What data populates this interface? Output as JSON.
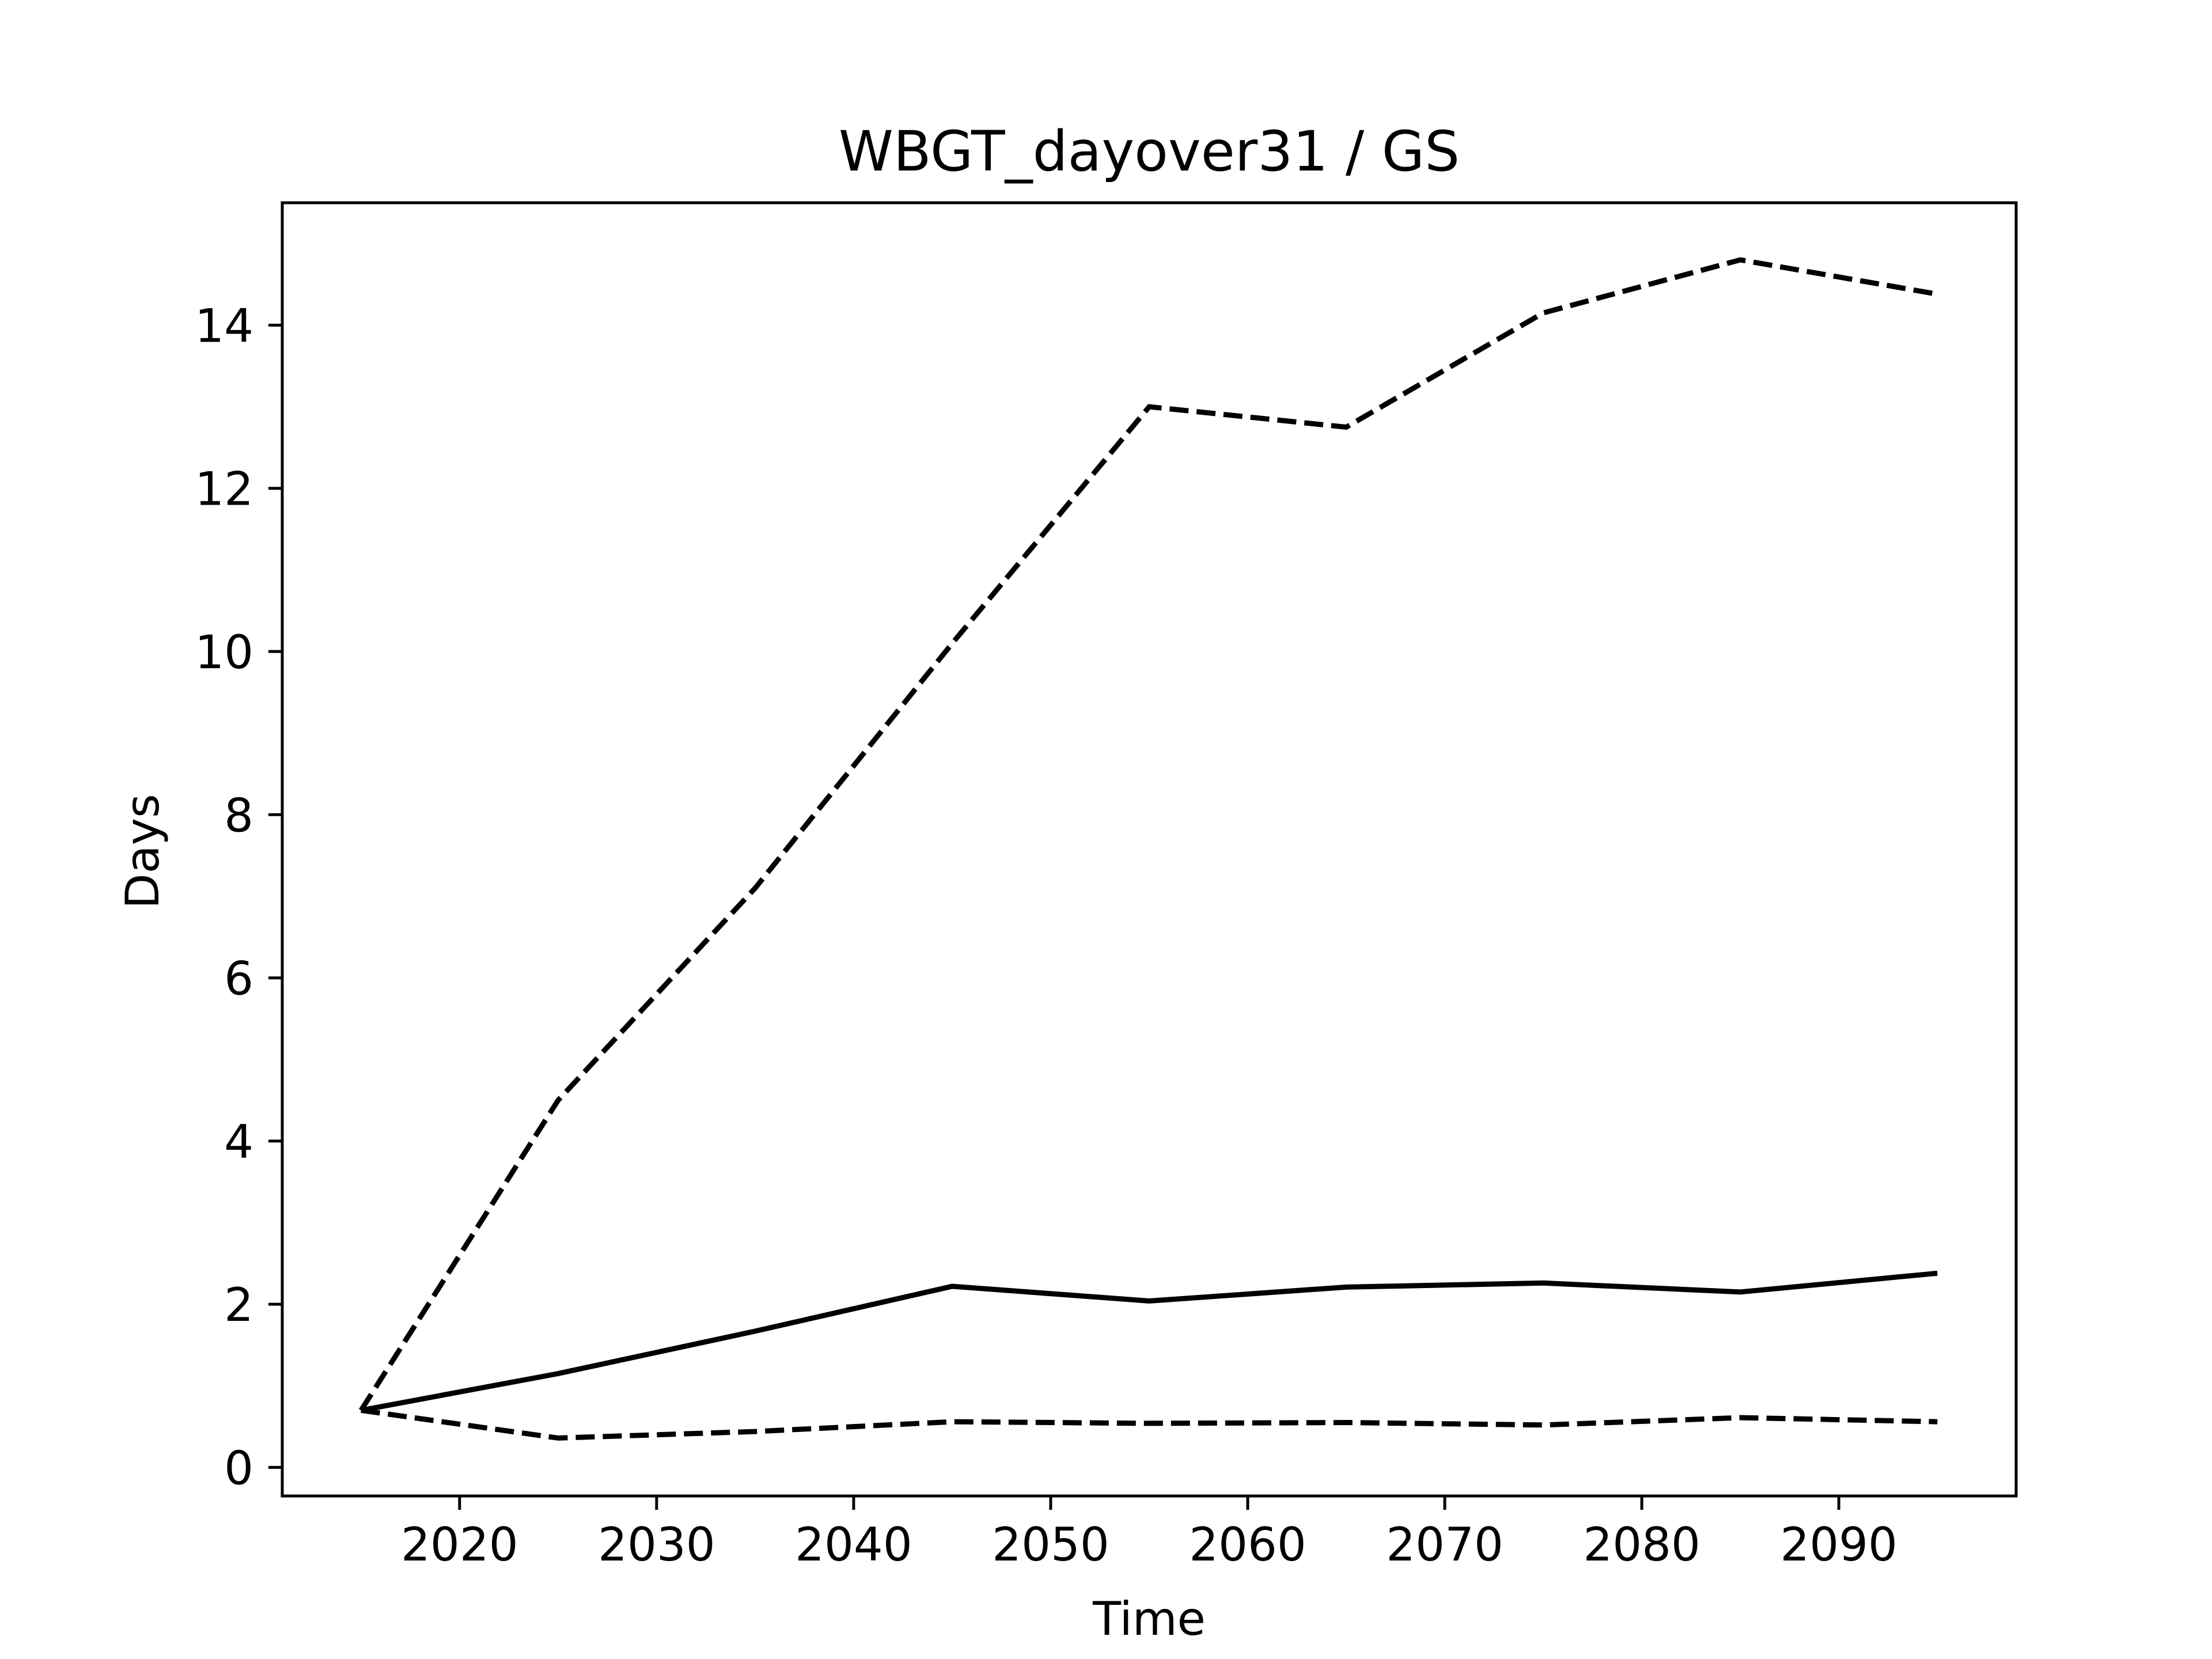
{
  "chart_data": {
    "type": "line",
    "title": "WBGT_dayover31 / GS",
    "xlabel": "Time",
    "ylabel": "Days",
    "xlim": [
      2011,
      2099
    ],
    "ylim": [
      -0.35,
      15.5
    ],
    "xticks": [
      2020,
      2030,
      2040,
      2050,
      2060,
      2070,
      2080,
      2090
    ],
    "yticks": [
      0,
      2,
      4,
      6,
      8,
      10,
      12,
      14
    ],
    "grid": false,
    "x": [
      2015,
      2025,
      2035,
      2045,
      2055,
      2065,
      2075,
      2085,
      2095
    ],
    "series": [
      {
        "style": "dashed",
        "color": "#000000",
        "values": [
          0.7,
          4.5,
          7.1,
          10.1,
          13.0,
          12.75,
          14.15,
          14.8,
          14.38
        ]
      },
      {
        "style": "solid",
        "color": "#000000",
        "values": [
          0.7,
          1.15,
          1.67,
          2.22,
          2.04,
          2.21,
          2.26,
          2.15,
          2.38
        ]
      },
      {
        "style": "dashed",
        "color": "#000000",
        "values": [
          0.7,
          0.36,
          0.44,
          0.56,
          0.54,
          0.55,
          0.52,
          0.61,
          0.56
        ]
      }
    ]
  }
}
